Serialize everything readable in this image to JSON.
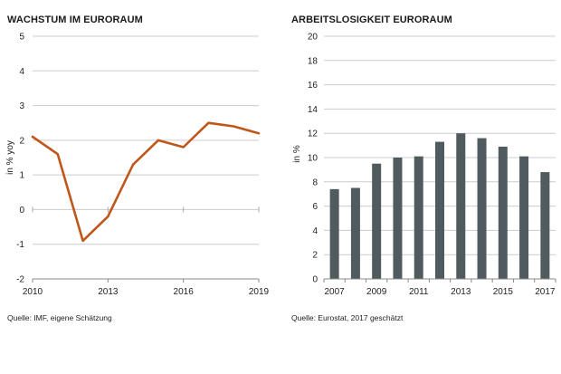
{
  "left": {
    "title": "WACHSTUM IM EURORAUM",
    "source": "Quelle: IMF, eigene Schätzung",
    "ylabel": "in % yoy"
  },
  "right": {
    "title": "ARBEITSLOSIGKEIT EURORAUM",
    "source": "Quelle: Eurostat, 2017 geschätzt",
    "ylabel": "in %"
  },
  "colors": {
    "line": "#c0561a",
    "bar": "#4f5b5f",
    "grid": "#cccccc"
  },
  "chart_data": [
    {
      "type": "line",
      "title": "WACHSTUM IM EURORAUM",
      "ylabel": "in % yoy",
      "x": [
        2010,
        2011,
        2012,
        2013,
        2014,
        2015,
        2016,
        2017,
        2018,
        2019
      ],
      "values": [
        2.1,
        1.6,
        -0.9,
        -0.2,
        1.3,
        2.0,
        1.8,
        2.5,
        2.4,
        2.2
      ],
      "ylim": [
        -2,
        5
      ],
      "yticks": [
        -2,
        -1,
        0,
        1,
        2,
        3,
        4,
        5
      ],
      "xticks": [
        2010,
        2013,
        2016,
        2019
      ],
      "grid": true
    },
    {
      "type": "bar",
      "title": "ARBEITSLOSIGKEIT EURORAUM",
      "ylabel": "in %",
      "categories": [
        2007,
        2008,
        2009,
        2010,
        2011,
        2012,
        2013,
        2014,
        2015,
        2016,
        2017
      ],
      "values": [
        7.4,
        7.5,
        9.5,
        10.0,
        10.1,
        11.3,
        12.0,
        11.6,
        10.9,
        10.1,
        8.8
      ],
      "ylim": [
        0,
        20
      ],
      "yticks": [
        0,
        2,
        4,
        6,
        8,
        10,
        12,
        14,
        16,
        18,
        20
      ],
      "xticks": [
        2007,
        2009,
        2011,
        2013,
        2015,
        2017
      ],
      "grid": true
    }
  ]
}
